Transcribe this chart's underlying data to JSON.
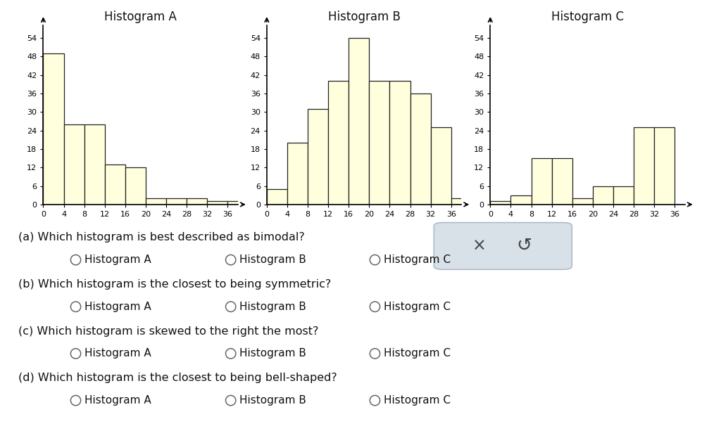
{
  "hist_A": {
    "title": "Histogram A",
    "values": [
      49,
      26,
      26,
      13,
      12,
      2,
      2,
      2,
      1,
      1
    ],
    "bin_edges": [
      0,
      4,
      8,
      12,
      16,
      20,
      24,
      28,
      32,
      36,
      40
    ]
  },
  "hist_B": {
    "title": "Histogram B",
    "values": [
      5,
      20,
      31,
      40,
      54,
      40,
      40,
      36,
      25,
      2
    ],
    "bin_edges": [
      0,
      4,
      8,
      12,
      16,
      20,
      24,
      28,
      32,
      36,
      40
    ]
  },
  "hist_C": {
    "title": "Histogram C",
    "values": [
      1,
      3,
      15,
      15,
      2,
      6,
      6,
      25,
      25,
      0
    ],
    "bin_edges": [
      0,
      4,
      8,
      12,
      16,
      20,
      24,
      28,
      32,
      36,
      40
    ]
  },
  "bar_color": "#ffffdd",
  "bar_edge_color": "#222222",
  "yticks": [
    0,
    6,
    12,
    18,
    24,
    30,
    36,
    42,
    48,
    54
  ],
  "xticks": [
    0,
    4,
    8,
    12,
    16,
    20,
    24,
    28,
    32,
    36
  ],
  "ylim": [
    0,
    58
  ],
  "xlim": [
    0,
    38
  ],
  "background_color": "#ffffff",
  "questions": [
    "(a) Which histogram is best described as bimodal?",
    "(b) Which histogram is the closest to being symmetric?",
    "(c) Which histogram is skewed to the right the most?",
    "(d) Which histogram is the closest to being bell-shaped?"
  ],
  "options": [
    "Histogram A",
    "Histogram B",
    "Histogram C"
  ],
  "text_color": "#111111",
  "question_fontsize": 11.5,
  "option_fontsize": 11
}
